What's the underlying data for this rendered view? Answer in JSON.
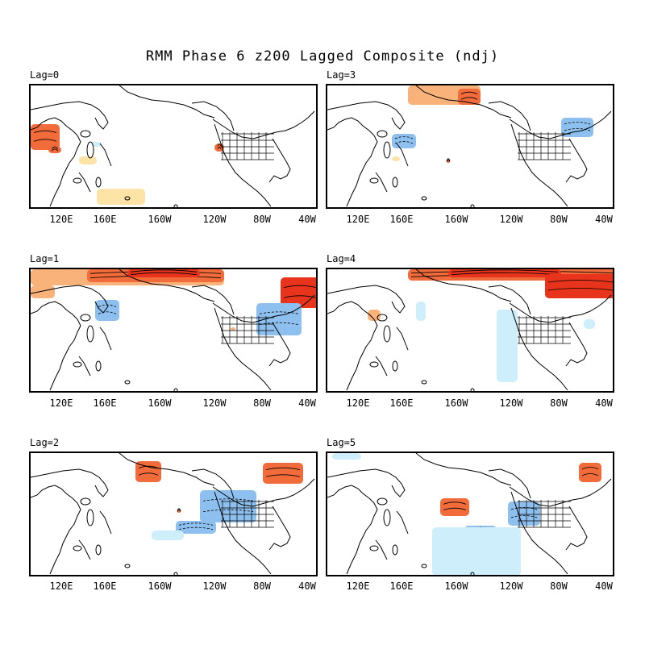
{
  "title": "RMM Phase 6 z200 Lagged Composite (ndj)",
  "tick_labels": [
    "120E",
    "160E",
    "160W",
    "120W",
    "80W",
    "40W"
  ],
  "colors": {
    "pos_strong": "#e8341c",
    "pos_mid": "#f26b3a",
    "pos_light": "#f9b27a",
    "pos_pale": "#fde3a5",
    "neg_strong": "#5b9be0",
    "neg_mid": "#8ec0ef",
    "neg_pale": "#cdeefa",
    "coast": "#000000"
  },
  "panels": [
    {
      "label": "Lag=0",
      "id": "lag0"
    },
    {
      "label": "Lag=3",
      "id": "lag3"
    },
    {
      "label": "Lag=1",
      "id": "lag1"
    },
    {
      "label": "Lag=4",
      "id": "lag4"
    },
    {
      "label": "Lag=2",
      "id": "lag2"
    },
    {
      "label": "Lag=5",
      "id": "lag5"
    }
  ]
}
